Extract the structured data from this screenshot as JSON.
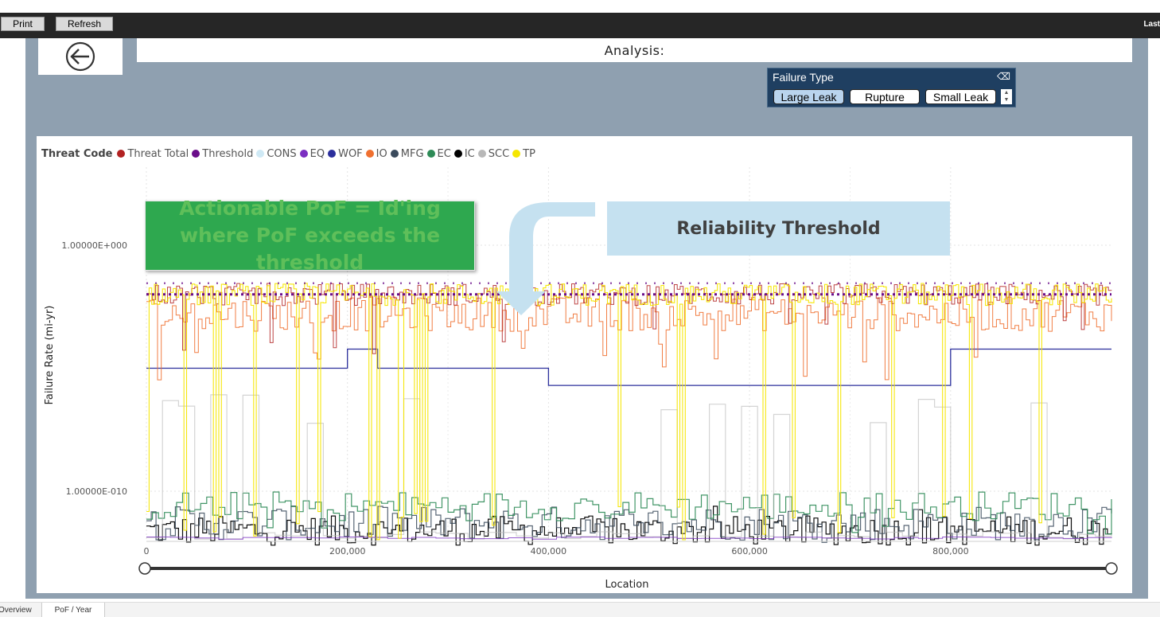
{
  "toolbar": {
    "print_label": "Print",
    "refresh_label": "Refresh",
    "last_label": "Last"
  },
  "header": {
    "title": "Analysis:"
  },
  "slicer": {
    "title": "Failure Type",
    "options": [
      {
        "label": "Large Leak",
        "selected": true
      },
      {
        "label": "Rupture",
        "selected": false
      },
      {
        "label": "Small Leak",
        "selected": false
      }
    ]
  },
  "legend": {
    "title": "Threat Code",
    "items": [
      {
        "label": "Threat Total",
        "color": "#b22222"
      },
      {
        "label": "Threshold",
        "color": "#6a0d8a"
      },
      {
        "label": "CONS",
        "color": "#cfe9f5"
      },
      {
        "label": "EQ",
        "color": "#7b2fc1"
      },
      {
        "label": "WOF",
        "color": "#2b2f9c"
      },
      {
        "label": "IO",
        "color": "#f07030"
      },
      {
        "label": "MFG",
        "color": "#3a4a5c"
      },
      {
        "label": "EC",
        "color": "#2e8b57"
      },
      {
        "label": "IC",
        "color": "#000000"
      },
      {
        "label": "SCC",
        "color": "#b8b8b8"
      },
      {
        "label": "TP",
        "color": "#f5e600"
      }
    ]
  },
  "annotations": {
    "green": "Actionable PoF = Id'ing where PoF exceeds the threshold",
    "blue": "Reliability Threshold"
  },
  "tabs": [
    {
      "label": "Overview",
      "active": false
    },
    {
      "label": "PoF / Year",
      "active": true
    }
  ],
  "chart_data": {
    "type": "line",
    "title": "",
    "xlabel": "Location",
    "ylabel": "Failure Rate (mi-yr)",
    "x_ticks": [
      0,
      200000,
      400000,
      600000,
      800000
    ],
    "x_tick_labels": [
      "0",
      "200,000",
      "400,000",
      "600,000",
      "800,000"
    ],
    "y_scale": "log",
    "y_tick_values": [
      1,
      1e-10
    ],
    "y_tick_labels": [
      "1.00000E+000",
      "1.00000E-010"
    ],
    "xlim": [
      0,
      960000
    ],
    "grid": true,
    "legend_position": "top-left",
    "series": [
      {
        "name": "Threshold",
        "approx_value": 0.01
      },
      {
        "name": "WOF",
        "segments": [
          {
            "x": [
              0,
              200000
            ],
            "y": 1e-05
          },
          {
            "x": [
              200000,
              230000
            ],
            "y": 6e-05
          },
          {
            "x": [
              230000,
              400000
            ],
            "y": 1e-05
          },
          {
            "x": [
              400000,
              800000
            ],
            "y": 2e-06
          },
          {
            "x": [
              800000,
              960000
            ],
            "y": 6e-05
          }
        ]
      },
      {
        "name": "Threat Total",
        "band": "approx 1e-2 with dips"
      },
      {
        "name": "TP",
        "band": "approx 1e-2 with spikes to below 1e-11"
      },
      {
        "name": "IO",
        "band": "approx 1e-3 to 1e-2"
      },
      {
        "name": "EC",
        "band": "approx 1e-11 to 1e-9"
      },
      {
        "name": "IC",
        "band": "approx 1e-12 to 1e-10"
      },
      {
        "name": "MFG",
        "band": "approx 1e-12 to 1e-10"
      },
      {
        "name": "SCC",
        "band": "sporadic spikes"
      },
      {
        "name": "EQ",
        "band": "near 1e-12"
      },
      {
        "name": "CONS",
        "band": "not visible"
      }
    ]
  }
}
